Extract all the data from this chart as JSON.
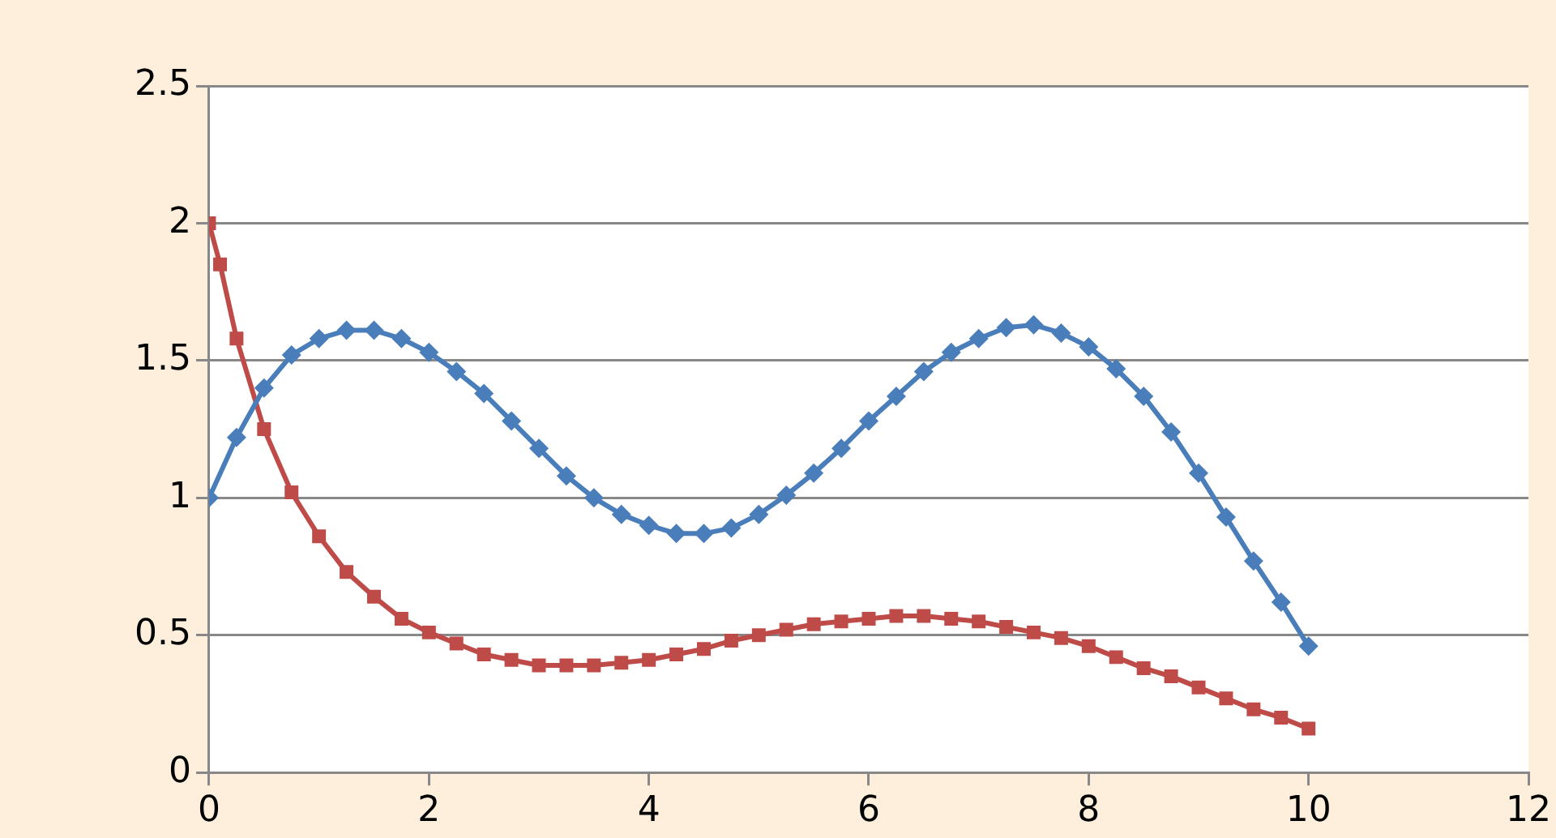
{
  "chart_data": {
    "type": "line",
    "xlim": [
      0,
      12
    ],
    "xticks": [
      0,
      2,
      4,
      6,
      8,
      10,
      12
    ],
    "ylim": [
      0,
      2.5
    ],
    "yticks": [
      0,
      0.5,
      1,
      1.5,
      2,
      2.5
    ],
    "grid": "y",
    "legend": false,
    "line_style": "solid",
    "series": [
      {
        "color": "#4a7ebb",
        "marker": "diamond",
        "x": [
          0,
          0.25,
          0.5,
          0.75,
          1,
          1.25,
          1.5,
          1.75,
          2,
          2.25,
          2.5,
          2.75,
          3,
          3.25,
          3.5,
          3.75,
          4,
          4.25,
          4.5,
          4.75,
          5,
          5.25,
          5.5,
          5.75,
          6,
          6.25,
          6.5,
          6.75,
          7,
          7.25,
          7.5,
          7.75,
          8,
          8.25,
          8.5,
          8.75,
          9,
          9.25,
          9.5,
          9.75,
          10
        ],
        "values": [
          1.0,
          1.22,
          1.4,
          1.52,
          1.58,
          1.61,
          1.61,
          1.58,
          1.53,
          1.46,
          1.38,
          1.28,
          1.18,
          1.08,
          1.0,
          0.94,
          0.9,
          0.87,
          0.87,
          0.89,
          0.94,
          1.01,
          1.09,
          1.18,
          1.28,
          1.37,
          1.46,
          1.53,
          1.58,
          1.62,
          1.63,
          1.6,
          1.55,
          1.47,
          1.37,
          1.24,
          1.09,
          0.93,
          0.77,
          0.62,
          0.46
        ]
      },
      {
        "color": "#be4b48",
        "marker": "square",
        "x": [
          0,
          0.1,
          0.25,
          0.5,
          0.75,
          1,
          1.25,
          1.5,
          1.75,
          2,
          2.25,
          2.5,
          2.75,
          3,
          3.25,
          3.5,
          3.75,
          4,
          4.25,
          4.5,
          4.75,
          5,
          5.25,
          5.5,
          5.75,
          6,
          6.25,
          6.5,
          6.75,
          7,
          7.25,
          7.5,
          7.75,
          8,
          8.25,
          8.5,
          8.75,
          9,
          9.25,
          9.5,
          9.75,
          10
        ],
        "values": [
          2.0,
          1.85,
          1.58,
          1.25,
          1.02,
          0.86,
          0.73,
          0.64,
          0.56,
          0.51,
          0.47,
          0.43,
          0.41,
          0.39,
          0.39,
          0.39,
          0.4,
          0.41,
          0.43,
          0.45,
          0.48,
          0.5,
          0.52,
          0.54,
          0.55,
          0.56,
          0.57,
          0.57,
          0.56,
          0.55,
          0.53,
          0.51,
          0.49,
          0.46,
          0.42,
          0.38,
          0.35,
          0.31,
          0.27,
          0.23,
          0.2,
          0.16
        ]
      }
    ]
  }
}
